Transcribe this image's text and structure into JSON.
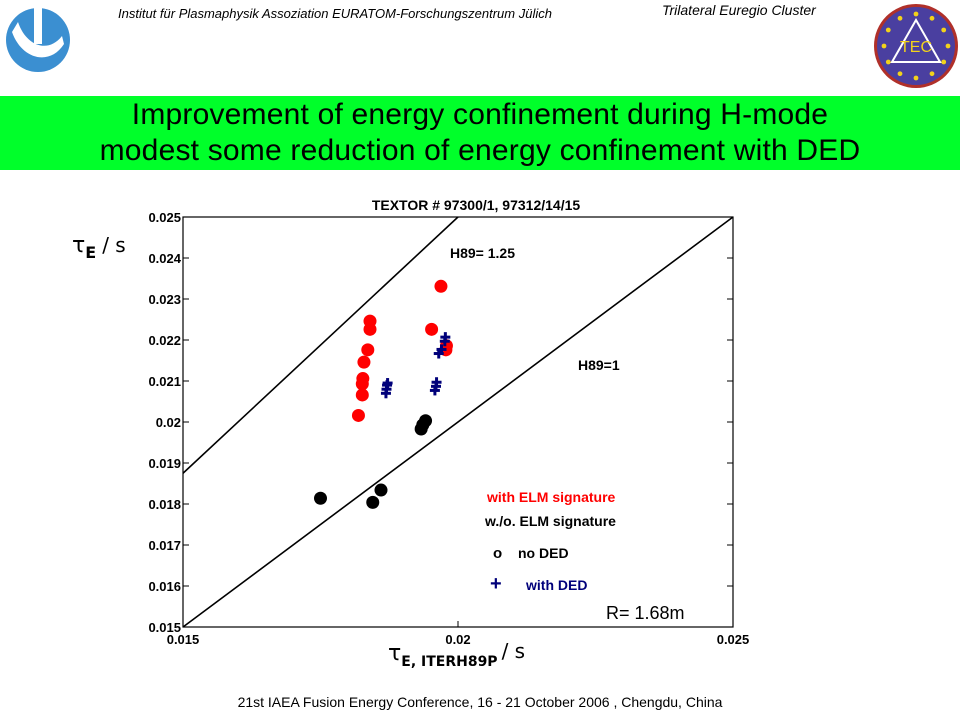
{
  "header": {
    "institute": "Institut für Plasmaphysik Assoziation EURATOM-Forschungszentrum Jülich",
    "cluster": "Trilateral Euregio Cluster",
    "tec_logo_text": "TEC",
    "colors": {
      "left_logo": "#3b8fd1",
      "tec_logo_bg": "#4a3fa0",
      "tec_logo_stars": "#f2d21b",
      "tec_logo_ring": "#b0302a"
    }
  },
  "banner": {
    "line1": "Improvement of energy confinement during H-mode",
    "line2": "modest some reduction of energy confinement with DED",
    "color": "#00ff2a"
  },
  "footer": {
    "text": "21st IAEA Fusion Energy Conference, 16 - 21 October 2006 , Chengdu, China"
  },
  "chart_data": {
    "type": "scatter",
    "title": "TEXTOR # 97300/1, 97312/14/15",
    "xlabel_symbol": "τ",
    "xlabel_sub": "E, ITERH89P",
    "xlabel_unit": "/ s",
    "ylabel_symbol": "τ",
    "ylabel_sub": "E",
    "ylabel_unit": "/ s",
    "xlim": [
      0.015,
      0.025
    ],
    "ylim": [
      0.015,
      0.025
    ],
    "xticks": [
      {
        "value": 0.015,
        "label": "0.015"
      },
      {
        "value": 0.02,
        "label": "0.02"
      },
      {
        "value": 0.025,
        "label": "0.025"
      }
    ],
    "yticks": [
      {
        "value": 0.015,
        "label": "0.015"
      },
      {
        "value": 0.016,
        "label": "0.016"
      },
      {
        "value": 0.017,
        "label": "0.017"
      },
      {
        "value": 0.018,
        "label": "0.018"
      },
      {
        "value": 0.019,
        "label": "0.019"
      },
      {
        "value": 0.02,
        "label": "0.02"
      },
      {
        "value": 0.021,
        "label": "0.021"
      },
      {
        "value": 0.022,
        "label": "0.022"
      },
      {
        "value": 0.023,
        "label": "0.023"
      },
      {
        "value": 0.024,
        "label": "0.024"
      },
      {
        "value": 0.025,
        "label": "0.025"
      }
    ],
    "grid": false,
    "reference_lines": [
      {
        "label": "H89= 1.25",
        "slope": 1.25,
        "color": "#000000"
      },
      {
        "label": "H89=1",
        "slope": 1.0,
        "color": "#000000"
      }
    ],
    "series": [
      {
        "marker": "circle",
        "color": "#ff0000",
        "points": [
          [
            0.01819,
            0.02016
          ],
          [
            0.01826,
            0.02066
          ],
          [
            0.01826,
            0.02093
          ],
          [
            0.01827,
            0.02106
          ],
          [
            0.01829,
            0.02146
          ],
          [
            0.01836,
            0.02176
          ],
          [
            0.0184,
            0.02226
          ],
          [
            0.0184,
            0.02246
          ],
          [
            0.01952,
            0.02226
          ],
          [
            0.01969,
            0.02331
          ],
          [
            0.01978,
            0.02176
          ],
          [
            0.01979,
            0.02186
          ]
        ]
      },
      {
        "marker": "plus",
        "color": "#00007a",
        "points": [
          [
            0.01869,
            0.0207
          ],
          [
            0.0187,
            0.0208
          ],
          [
            0.01871,
            0.0209
          ],
          [
            0.01872,
            0.02095
          ],
          [
            0.01958,
            0.02077
          ],
          [
            0.0196,
            0.02087
          ],
          [
            0.01961,
            0.02097
          ],
          [
            0.01965,
            0.02167
          ],
          [
            0.0197,
            0.02177
          ],
          [
            0.01976,
            0.02197
          ],
          [
            0.01977,
            0.02207
          ]
        ]
      },
      {
        "marker": "circle",
        "color": "#000000",
        "points": [
          [
            0.0175,
            0.01814
          ],
          [
            0.01845,
            0.01804
          ],
          [
            0.0186,
            0.01834
          ],
          [
            0.01933,
            0.01983
          ],
          [
            0.01936,
            0.01993
          ],
          [
            0.01941,
            0.02003
          ]
        ]
      }
    ],
    "legend": {
      "placement": "bottom-right",
      "line1": "with ELM signature",
      "line1_color": "#ff0000",
      "line2": "w./o. ELM signature",
      "no_ded_symbol": "o",
      "no_ded_label": "no DED",
      "with_ded_symbol": "+",
      "with_ded_label": "with DED",
      "with_ded_color": "#00007a"
    },
    "annotation": "R= 1.68m"
  }
}
